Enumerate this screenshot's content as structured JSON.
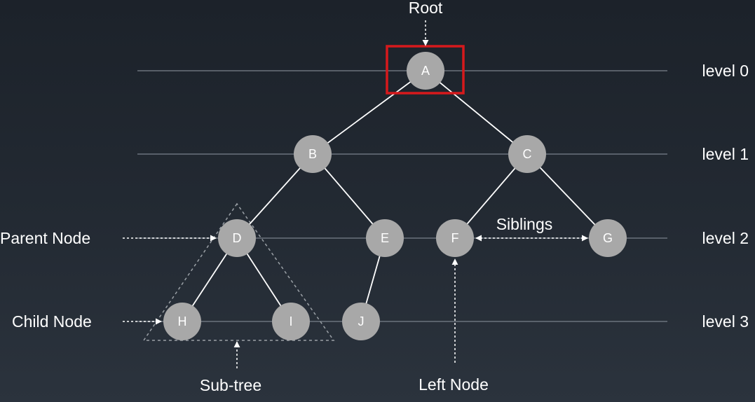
{
  "labels": {
    "root": "Root",
    "parent_node": "Parent Node",
    "child_node": "Child Node",
    "sub_tree": "Sub-tree",
    "left_node": "Left Node",
    "siblings": "Siblings"
  },
  "levels": [
    "level 0",
    "level 1",
    "level 2",
    "level 3"
  ],
  "nodes": [
    "A",
    "B",
    "C",
    "D",
    "E",
    "F",
    "G",
    "H",
    "I",
    "J"
  ],
  "edges": [
    [
      "A",
      "B"
    ],
    [
      "A",
      "C"
    ],
    [
      "B",
      "D"
    ],
    [
      "B",
      "E"
    ],
    [
      "C",
      "F"
    ],
    [
      "C",
      "G"
    ],
    [
      "D",
      "H"
    ],
    [
      "D",
      "I"
    ],
    [
      "E",
      "J"
    ]
  ],
  "colors": {
    "node_fill": "#a8a8a8",
    "highlight": "#d6191c",
    "edge": "#ffffff",
    "level_line": "#6b737d",
    "text": "#ffffff"
  }
}
